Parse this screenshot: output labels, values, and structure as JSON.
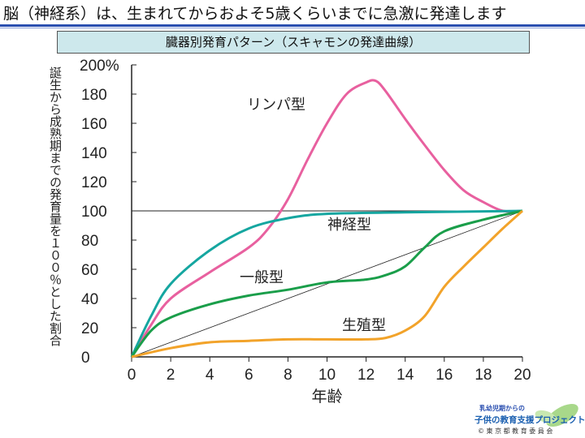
{
  "headline": "脳（神経系）は、生まれてからおよそ5歳くらいまでに急激に発達します",
  "subtitle": "臓器別発育パターン（スキャモンの発達曲線）",
  "logo": {
    "line1": "乳幼児期からの",
    "line2": "子供の教育支援プロジェクト",
    "line3": "© 東 京 都 教 育 委 員 会"
  },
  "chart_data": {
    "type": "line",
    "xlabel": "年齢",
    "ylabel": "誕生から成熟期までの発育量を１００％とした割合",
    "xlim": [
      0,
      20
    ],
    "ylim": [
      0,
      200
    ],
    "xticks": [
      "0",
      "2",
      "4",
      "6",
      "8",
      "10",
      "12",
      "14",
      "16",
      "18",
      "20"
    ],
    "yticks": [
      "0",
      "20",
      "40",
      "60",
      "80",
      "100",
      "120",
      "140",
      "160",
      "180",
      "200%"
    ],
    "reference_lines": {
      "horizontal_at": 100,
      "diagonal": [
        [
          0,
          0
        ],
        [
          20,
          100
        ]
      ]
    },
    "series": [
      {
        "name": "リンパ型",
        "color": "#e8609f",
        "points": [
          [
            0,
            0
          ],
          [
            1,
            22
          ],
          [
            2,
            40
          ],
          [
            4,
            58
          ],
          [
            6,
            75
          ],
          [
            7,
            88
          ],
          [
            8,
            108
          ],
          [
            9,
            135
          ],
          [
            10,
            160
          ],
          [
            11,
            180
          ],
          [
            12,
            188
          ],
          [
            12.5,
            189
          ],
          [
            13,
            182
          ],
          [
            14,
            163
          ],
          [
            15,
            145
          ],
          [
            16,
            128
          ],
          [
            17,
            114
          ],
          [
            18,
            106
          ],
          [
            19,
            100
          ],
          [
            20,
            100
          ]
        ]
      },
      {
        "name": "神経型",
        "color": "#15a6a0",
        "points": [
          [
            0,
            0
          ],
          [
            1,
            28
          ],
          [
            2,
            50
          ],
          [
            4,
            73
          ],
          [
            6,
            88
          ],
          [
            8,
            95
          ],
          [
            10,
            98
          ],
          [
            14,
            99
          ],
          [
            20,
            100
          ]
        ]
      },
      {
        "name": "一般型",
        "color": "#1a9e4a",
        "points": [
          [
            0,
            0
          ],
          [
            1,
            18
          ],
          [
            2,
            27
          ],
          [
            4,
            36
          ],
          [
            6,
            42
          ],
          [
            8,
            46
          ],
          [
            10,
            51
          ],
          [
            12,
            53
          ],
          [
            13,
            56
          ],
          [
            14,
            62
          ],
          [
            15,
            75
          ],
          [
            16,
            86
          ],
          [
            18,
            94
          ],
          [
            20,
            100
          ]
        ]
      },
      {
        "name": "生殖型",
        "color": "#f2a32a",
        "points": [
          [
            0,
            0
          ],
          [
            2,
            6
          ],
          [
            4,
            10
          ],
          [
            6,
            11
          ],
          [
            8,
            12
          ],
          [
            10,
            12
          ],
          [
            12,
            12
          ],
          [
            13,
            13
          ],
          [
            14,
            18
          ],
          [
            15,
            28
          ],
          [
            16,
            48
          ],
          [
            17,
            62
          ],
          [
            18,
            75
          ],
          [
            19,
            88
          ],
          [
            20,
            100
          ]
        ]
      }
    ],
    "grid": false,
    "legend": "inline labels"
  }
}
